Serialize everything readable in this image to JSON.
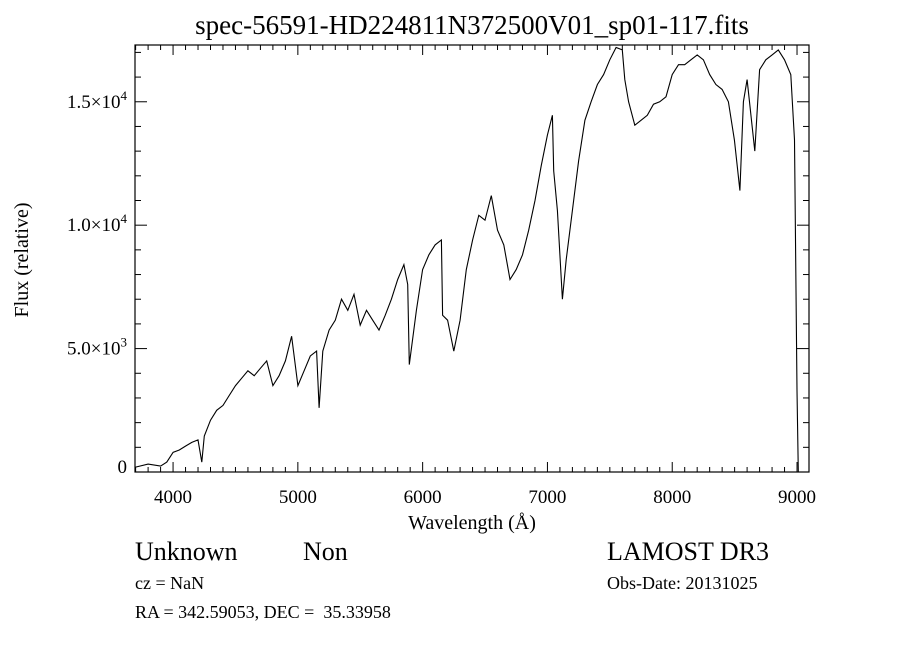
{
  "chart_data": {
    "type": "line",
    "title": "spec-56591-HD224811N372500V01_sp01-117.fits",
    "xlabel": "Wavelength (Å)",
    "ylabel": "Flux (relative)",
    "xlim": [
      3695,
      9096
    ],
    "ylim": [
      0,
      17300
    ],
    "xticks": [
      4000,
      5000,
      6000,
      7000,
      8000,
      9000
    ],
    "xtick_labels": [
      "4000",
      "5000",
      "6000",
      "7000",
      "8000",
      "9000"
    ],
    "yticks": [
      0,
      5000,
      10000,
      15000
    ],
    "ytick_labels": [
      {
        "mant": "0",
        "exp": ""
      },
      {
        "mant": "5.0×10",
        "exp": "3"
      },
      {
        "mant": "1.0×10",
        "exp": "4"
      },
      {
        "mant": "1.5×10",
        "exp": "4"
      }
    ],
    "grid": false,
    "series": [
      {
        "name": "spectrum",
        "x": [
          3700,
          3800,
          3900,
          3950,
          4000,
          4050,
          4100,
          4150,
          4200,
          4230,
          4250,
          4300,
          4350,
          4400,
          4450,
          4500,
          4550,
          4600,
          4650,
          4700,
          4750,
          4800,
          4850,
          4900,
          4950,
          5000,
          5050,
          5100,
          5150,
          5170,
          5200,
          5250,
          5300,
          5350,
          5400,
          5450,
          5500,
          5550,
          5600,
          5650,
          5700,
          5750,
          5800,
          5850,
          5880,
          5893,
          5950,
          6000,
          6050,
          6100,
          6150,
          6160,
          6200,
          6250,
          6300,
          6350,
          6400,
          6450,
          6500,
          6550,
          6600,
          6650,
          6700,
          6750,
          6800,
          6850,
          6900,
          6950,
          7000,
          7040,
          7050,
          7080,
          7120,
          7150,
          7200,
          7250,
          7300,
          7350,
          7400,
          7450,
          7500,
          7550,
          7600,
          7620,
          7650,
          7700,
          7750,
          7800,
          7850,
          7900,
          7950,
          8000,
          8050,
          8100,
          8150,
          8200,
          8250,
          8300,
          8350,
          8400,
          8450,
          8498,
          8542,
          8570,
          8600,
          8662,
          8700,
          8750,
          8800,
          8850,
          8900,
          8950,
          8980,
          9000,
          9010
        ],
        "y": [
          200,
          320,
          240,
          400,
          800,
          890,
          1050,
          1200,
          1300,
          400,
          1460,
          2100,
          2500,
          2700,
          3100,
          3500,
          3800,
          4100,
          3900,
          4200,
          4500,
          3500,
          3900,
          4500,
          5500,
          3500,
          4100,
          4700,
          4900,
          2600,
          4900,
          5750,
          6150,
          7000,
          6550,
          7200,
          5950,
          6550,
          6150,
          5750,
          6350,
          7000,
          7800,
          8400,
          7600,
          4350,
          6550,
          8200,
          8800,
          9200,
          9400,
          6350,
          6150,
          4900,
          6150,
          8200,
          9400,
          10400,
          10200,
          11200,
          9800,
          9200,
          7800,
          8200,
          8800,
          9800,
          11000,
          12400,
          13650,
          14450,
          12200,
          10600,
          7000,
          8600,
          10600,
          12600,
          14250,
          15000,
          15700,
          16100,
          16700,
          17200,
          17100,
          15900,
          15000,
          14050,
          14250,
          14450,
          14900,
          15000,
          15200,
          16100,
          16500,
          16500,
          16700,
          16900,
          16700,
          16100,
          15700,
          15500,
          15000,
          13450,
          11400,
          15000,
          15900,
          13000,
          16300,
          16700,
          16900,
          17100,
          16700,
          16100,
          13450,
          3300,
          0
        ]
      }
    ]
  },
  "info": {
    "class_label": "Unknown",
    "subclass_label": "Non",
    "cz": "cz = NaN",
    "coords": "RA = 342.59053, DEC =  35.33958",
    "survey": "LAMOST DR3",
    "obs_date": "Obs-Date: 20131025"
  }
}
